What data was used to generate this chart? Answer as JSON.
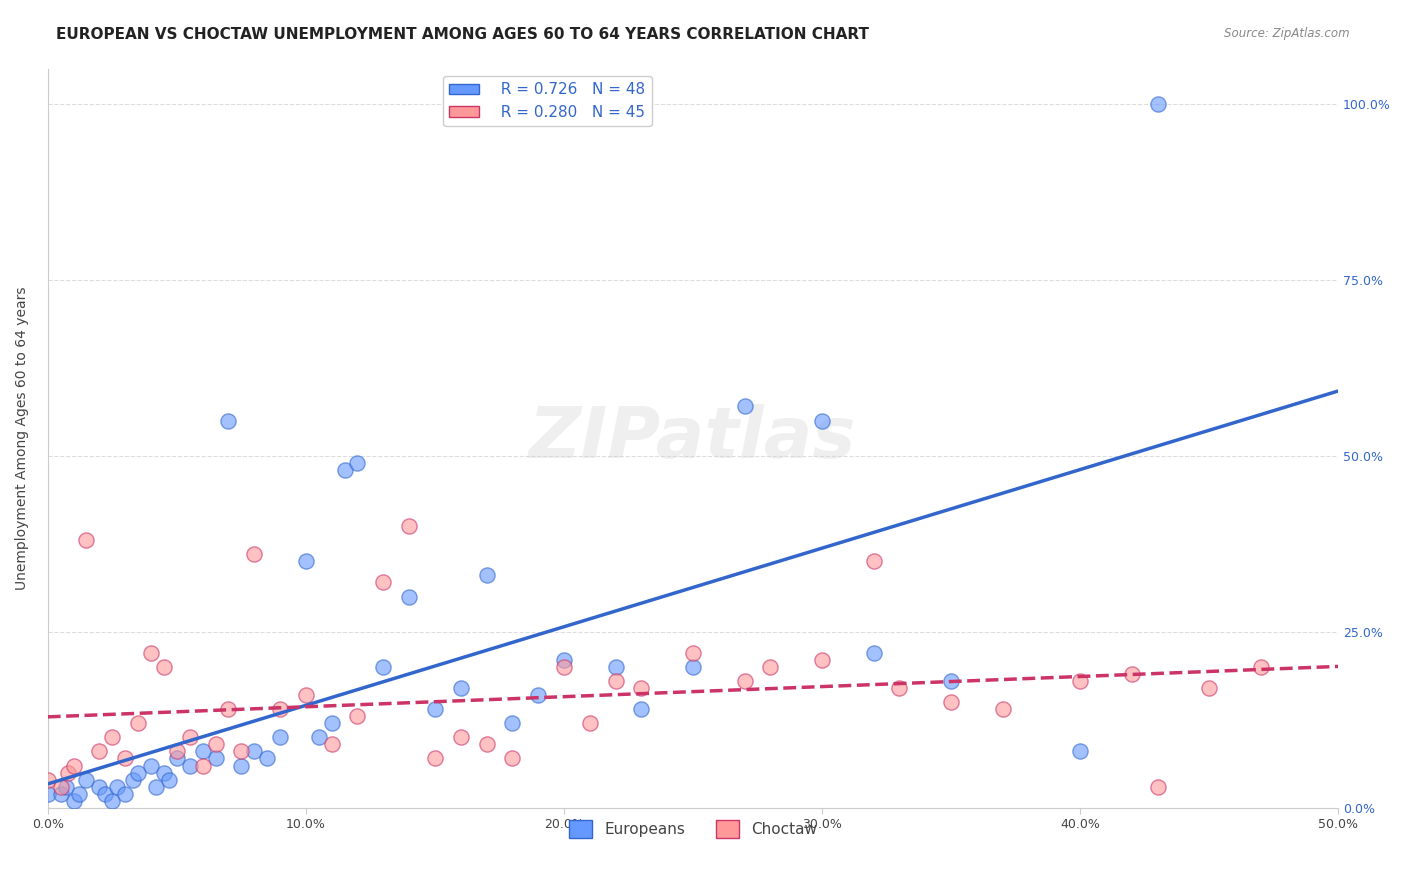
{
  "title": "EUROPEAN VS CHOCTAW UNEMPLOYMENT AMONG AGES 60 TO 64 YEARS CORRELATION CHART",
  "source": "Source: ZipAtlas.com",
  "xlabel": "",
  "ylabel": "Unemployment Among Ages 60 to 64 years",
  "xlim": [
    0.0,
    0.5
  ],
  "ylim": [
    0.0,
    1.05
  ],
  "xticks": [
    0.0,
    0.1,
    0.2,
    0.3,
    0.4,
    0.5
  ],
  "xticklabels": [
    "0.0%",
    "10.0%",
    "20.0%",
    "30.0%",
    "40.0%",
    "50.0%"
  ],
  "yticks": [
    0.0,
    0.25,
    0.5,
    0.75,
    1.0
  ],
  "yticklabels": [
    "0.0%",
    "25.0%",
    "50.0%",
    "75.0%",
    "100.0%"
  ],
  "europeans_color": "#6699ff",
  "choctaw_color": "#ff9999",
  "trendline_european_color": "#3366cc",
  "trendline_choctaw_color": "#cc3366",
  "R_european": 0.726,
  "N_european": 48,
  "R_choctaw": 0.28,
  "N_choctaw": 45,
  "watermark": "ZIPatlas",
  "europeans_x": [
    0.0,
    0.005,
    0.007,
    0.01,
    0.012,
    0.015,
    0.02,
    0.022,
    0.025,
    0.027,
    0.03,
    0.033,
    0.035,
    0.04,
    0.042,
    0.045,
    0.047,
    0.05,
    0.055,
    0.06,
    0.065,
    0.07,
    0.075,
    0.08,
    0.085,
    0.09,
    0.1,
    0.105,
    0.11,
    0.115,
    0.12,
    0.13,
    0.14,
    0.15,
    0.16,
    0.17,
    0.18,
    0.19,
    0.2,
    0.22,
    0.23,
    0.25,
    0.27,
    0.3,
    0.32,
    0.35,
    0.4,
    0.43
  ],
  "europeans_y": [
    0.02,
    0.02,
    0.03,
    0.01,
    0.02,
    0.04,
    0.03,
    0.02,
    0.01,
    0.03,
    0.02,
    0.04,
    0.05,
    0.06,
    0.03,
    0.05,
    0.04,
    0.07,
    0.06,
    0.08,
    0.07,
    0.55,
    0.06,
    0.08,
    0.07,
    0.1,
    0.35,
    0.1,
    0.12,
    0.48,
    0.49,
    0.2,
    0.3,
    0.14,
    0.17,
    0.33,
    0.12,
    0.16,
    0.21,
    0.2,
    0.14,
    0.2,
    0.57,
    0.55,
    0.22,
    0.18,
    0.08,
    1.0
  ],
  "choctaw_x": [
    0.0,
    0.005,
    0.008,
    0.01,
    0.015,
    0.02,
    0.025,
    0.03,
    0.035,
    0.04,
    0.045,
    0.05,
    0.055,
    0.06,
    0.065,
    0.07,
    0.075,
    0.08,
    0.09,
    0.1,
    0.11,
    0.12,
    0.13,
    0.14,
    0.15,
    0.16,
    0.17,
    0.18,
    0.2,
    0.21,
    0.22,
    0.23,
    0.25,
    0.27,
    0.28,
    0.3,
    0.32,
    0.33,
    0.35,
    0.37,
    0.4,
    0.42,
    0.43,
    0.45,
    0.47
  ],
  "choctaw_y": [
    0.04,
    0.03,
    0.05,
    0.06,
    0.38,
    0.08,
    0.1,
    0.07,
    0.12,
    0.22,
    0.2,
    0.08,
    0.1,
    0.06,
    0.09,
    0.14,
    0.08,
    0.36,
    0.14,
    0.16,
    0.09,
    0.13,
    0.32,
    0.4,
    0.07,
    0.1,
    0.09,
    0.07,
    0.2,
    0.12,
    0.18,
    0.17,
    0.22,
    0.18,
    0.2,
    0.21,
    0.35,
    0.17,
    0.15,
    0.14,
    0.18,
    0.19,
    0.03,
    0.17,
    0.2
  ],
  "background_color": "#ffffff",
  "grid_color": "#dddddd",
  "title_fontsize": 11,
  "axis_label_fontsize": 10,
  "tick_fontsize": 9,
  "legend_fontsize": 11,
  "right_ytick_color": "#3366cc",
  "legend_upper_labels": [
    "  R = 0.726   N = 48",
    "  R = 0.280   N = 45"
  ],
  "legend_bottom_labels": [
    "Europeans",
    "Choctaw"
  ]
}
